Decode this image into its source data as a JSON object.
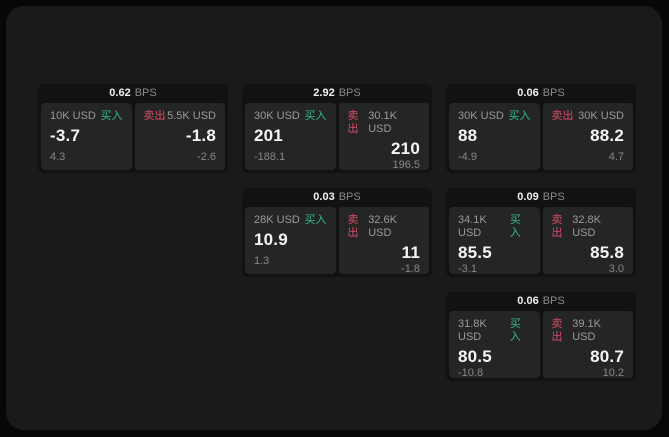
{
  "colors": {
    "buy": "#2ebd85",
    "sell": "#dd4a67",
    "value": "#f5f5f5"
  },
  "cards": [
    {
      "bps": "0.62",
      "unit": "BPS",
      "buy": {
        "amount": "10K USD",
        "tag": "买入",
        "value": "-3.7",
        "sub": "4.3"
      },
      "sell": {
        "tag": "卖出",
        "amount": "5.5K USD",
        "value": "-1.8",
        "sub": "-2.6"
      }
    },
    {
      "bps": "2.92",
      "unit": "BPS",
      "buy": {
        "amount": "30K USD",
        "tag": "买入",
        "value": "201",
        "sub": "-188.1"
      },
      "sell": {
        "tag": "卖出",
        "amount": "30.1K USD",
        "value": "210",
        "sub": "196.5"
      }
    },
    {
      "bps": "0.06",
      "unit": "BPS",
      "buy": {
        "amount": "30K USD",
        "tag": "买入",
        "value": "88",
        "sub": "-4.9"
      },
      "sell": {
        "tag": "卖出",
        "amount": "30K USD",
        "value": "88.2",
        "sub": "4.7"
      }
    },
    {
      "bps": "0.03",
      "unit": "BPS",
      "buy": {
        "amount": "28K USD",
        "tag": "买入",
        "value": "10.9",
        "sub": "1.3"
      },
      "sell": {
        "tag": "卖出",
        "amount": "32.6K USD",
        "value": "11",
        "sub": "-1.8"
      }
    },
    {
      "bps": "0.09",
      "unit": "BPS",
      "buy": {
        "amount": "34.1K USD",
        "tag": "买入",
        "value": "85.5",
        "sub": "-3.1"
      },
      "sell": {
        "tag": "卖出",
        "amount": "32.8K USD",
        "value": "85.8",
        "sub": "3.0"
      }
    },
    {
      "bps": "0.06",
      "unit": "BPS",
      "buy": {
        "amount": "31.8K USD",
        "tag": "买入",
        "value": "80.5",
        "sub": "-10.8"
      },
      "sell": {
        "tag": "卖出",
        "amount": "39.1K USD",
        "value": "80.7",
        "sub": "10.2"
      }
    }
  ]
}
